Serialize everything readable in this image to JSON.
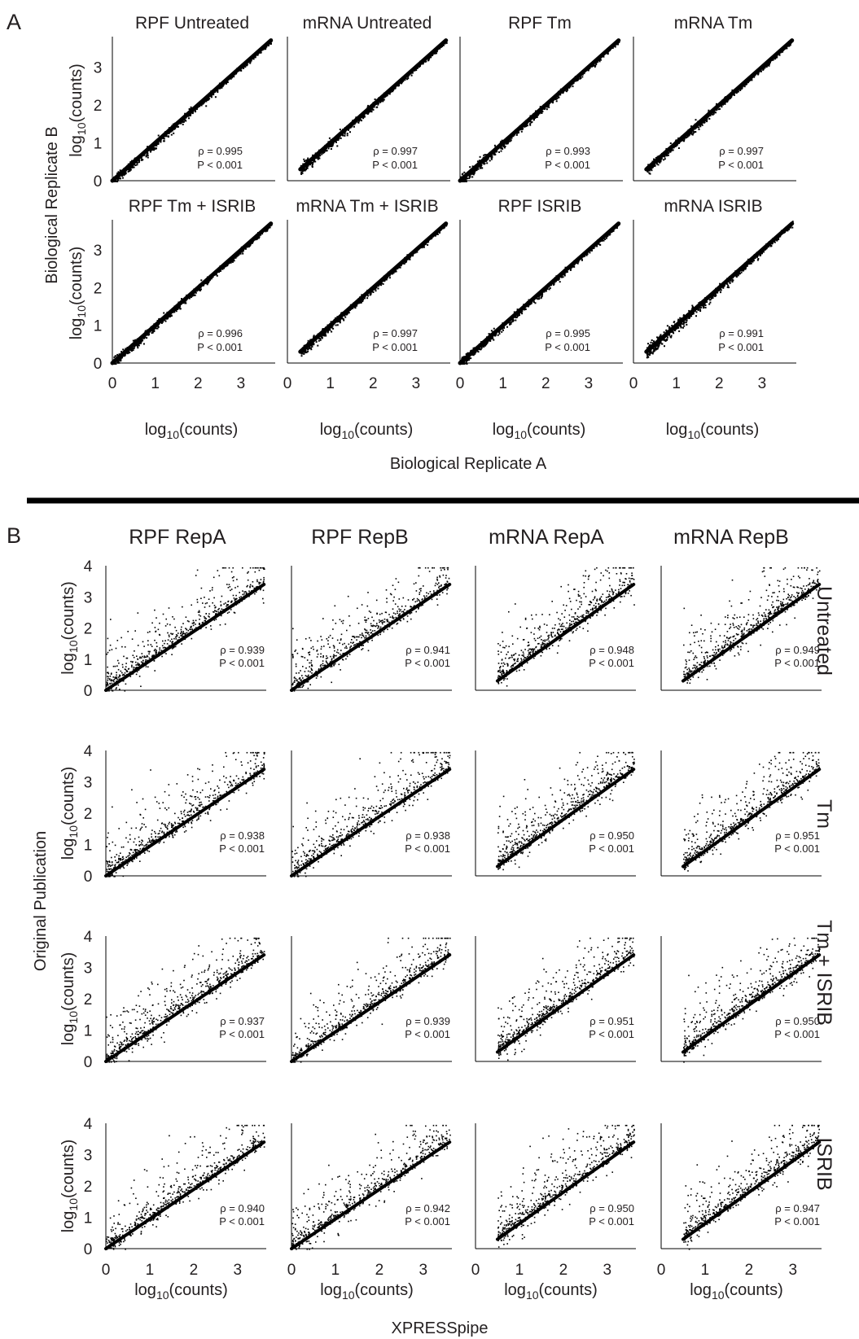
{
  "panel_labels": {
    "a": "A",
    "b": "B"
  },
  "panel_a": {
    "x_title": "Biological Replicate A",
    "y_title": "Biological Replicate B",
    "axis_label": "log10(counts)",
    "x_ticks": [
      "0",
      "1",
      "2",
      "3"
    ],
    "y_ticks": [
      "0",
      "1",
      "2",
      "3"
    ]
  },
  "panel_b": {
    "x_title": "XPRESSpipe",
    "y_title": "Original Publication",
    "axis_label": "log10(counts)",
    "x_ticks": [
      "0",
      "1",
      "2",
      "3"
    ],
    "y_ticks": [
      "0",
      "1",
      "2",
      "3",
      "4"
    ],
    "columns": [
      "RPF RepA",
      "RPF RepB",
      "mRNA RepA",
      "mRNA RepB"
    ],
    "rows": [
      "Untreated",
      "Tm",
      "Tm + ISRIB",
      "ISRIB"
    ]
  },
  "chart_data": [
    {
      "type": "scatter",
      "title": "RPF Untreated",
      "xlabel": "log10(counts)",
      "ylabel": "log10(counts)",
      "xlim": [
        0,
        3.8
      ],
      "ylim": [
        0,
        3.8
      ],
      "rho": "ρ = 0.995",
      "p": "P < 0.001",
      "trend": {
        "x": [
          0,
          3.7
        ],
        "y": [
          0,
          3.7
        ]
      }
    },
    {
      "type": "scatter",
      "title": "mRNA Untreated",
      "xlabel": "log10(counts)",
      "ylabel": "log10(counts)",
      "xlim": [
        0,
        3.8
      ],
      "ylim": [
        0,
        3.8
      ],
      "rho": "ρ = 0.997",
      "p": "P < 0.001",
      "trend": {
        "x": [
          0.3,
          3.7
        ],
        "y": [
          0.3,
          3.7
        ]
      }
    },
    {
      "type": "scatter",
      "title": "RPF Tm",
      "xlabel": "log10(counts)",
      "ylabel": "log10(counts)",
      "xlim": [
        0,
        3.8
      ],
      "ylim": [
        0,
        3.8
      ],
      "rho": "ρ = 0.993",
      "p": "P < 0.001",
      "trend": {
        "x": [
          0,
          3.7
        ],
        "y": [
          0,
          3.7
        ]
      }
    },
    {
      "type": "scatter",
      "title": "mRNA Tm",
      "xlabel": "log10(counts)",
      "ylabel": "log10(counts)",
      "xlim": [
        0,
        3.8
      ],
      "ylim": [
        0,
        3.8
      ],
      "rho": "ρ = 0.997",
      "p": "P < 0.001",
      "trend": {
        "x": [
          0.3,
          3.7
        ],
        "y": [
          0.3,
          3.7
        ]
      }
    },
    {
      "type": "scatter",
      "title": "RPF Tm + ISRIB",
      "xlabel": "log10(counts)",
      "ylabel": "log10(counts)",
      "xlim": [
        0,
        3.8
      ],
      "ylim": [
        0,
        3.8
      ],
      "rho": "ρ = 0.996",
      "p": "P < 0.001",
      "trend": {
        "x": [
          0,
          3.7
        ],
        "y": [
          0,
          3.7
        ]
      }
    },
    {
      "type": "scatter",
      "title": "mRNA Tm + ISRIB",
      "xlabel": "log10(counts)",
      "ylabel": "log10(counts)",
      "xlim": [
        0,
        3.8
      ],
      "ylim": [
        0,
        3.8
      ],
      "rho": "ρ = 0.997",
      "p": "P < 0.001",
      "trend": {
        "x": [
          0.3,
          3.7
        ],
        "y": [
          0.3,
          3.7
        ]
      }
    },
    {
      "type": "scatter",
      "title": "RPF ISRIB",
      "xlabel": "log10(counts)",
      "ylabel": "log10(counts)",
      "xlim": [
        0,
        3.8
      ],
      "ylim": [
        0,
        3.8
      ],
      "rho": "ρ = 0.995",
      "p": "P < 0.001",
      "trend": {
        "x": [
          0,
          3.7
        ],
        "y": [
          0,
          3.7
        ]
      }
    },
    {
      "type": "scatter",
      "title": "mRNA ISRIB",
      "xlabel": "log10(counts)",
      "ylabel": "log10(counts)",
      "xlim": [
        0,
        3.8
      ],
      "ylim": [
        0,
        3.8
      ],
      "rho": "ρ = 0.991",
      "p": "P < 0.001",
      "trend": {
        "x": [
          0.3,
          3.7
        ],
        "y": [
          0.3,
          3.7
        ]
      }
    },
    {
      "type": "scatter",
      "row": "Untreated",
      "column": "RPF RepA",
      "xlim": [
        0,
        3.8
      ],
      "ylim": [
        0,
        4
      ],
      "rho": "ρ = 0.939",
      "p": "P < 0.001",
      "trend": {
        "x": [
          0,
          3.6
        ],
        "y": [
          0,
          3.4
        ]
      }
    },
    {
      "type": "scatter",
      "row": "Untreated",
      "column": "RPF RepB",
      "xlim": [
        0,
        3.8
      ],
      "ylim": [
        0,
        4
      ],
      "rho": "ρ = 0.941",
      "p": "P < 0.001",
      "trend": {
        "x": [
          0,
          3.6
        ],
        "y": [
          0,
          3.4
        ]
      }
    },
    {
      "type": "scatter",
      "row": "Untreated",
      "column": "mRNA RepA",
      "xlim": [
        0,
        3.8
      ],
      "ylim": [
        0,
        4
      ],
      "rho": "ρ = 0.948",
      "p": "P < 0.001",
      "trend": {
        "x": [
          0.5,
          3.6
        ],
        "y": [
          0.3,
          3.4
        ]
      }
    },
    {
      "type": "scatter",
      "row": "Untreated",
      "column": "mRNA RepB",
      "xlim": [
        0,
        3.8
      ],
      "ylim": [
        0,
        4
      ],
      "rho": "ρ = 0.949",
      "p": "P < 0.001",
      "trend": {
        "x": [
          0.5,
          3.6
        ],
        "y": [
          0.3,
          3.4
        ]
      }
    },
    {
      "type": "scatter",
      "row": "Tm",
      "column": "RPF RepA",
      "xlim": [
        0,
        3.8
      ],
      "ylim": [
        0,
        4
      ],
      "rho": "ρ = 0.938",
      "p": "P < 0.001",
      "trend": {
        "x": [
          0,
          3.6
        ],
        "y": [
          0,
          3.4
        ]
      }
    },
    {
      "type": "scatter",
      "row": "Tm",
      "column": "RPF RepB",
      "xlim": [
        0,
        3.8
      ],
      "ylim": [
        0,
        4
      ],
      "rho": "ρ = 0.938",
      "p": "P < 0.001",
      "trend": {
        "x": [
          0,
          3.6
        ],
        "y": [
          0,
          3.4
        ]
      }
    },
    {
      "type": "scatter",
      "row": "Tm",
      "column": "mRNA RepA",
      "xlim": [
        0,
        3.8
      ],
      "ylim": [
        0,
        4
      ],
      "rho": "ρ = 0.950",
      "p": "P < 0.001",
      "trend": {
        "x": [
          0.5,
          3.6
        ],
        "y": [
          0.3,
          3.4
        ]
      }
    },
    {
      "type": "scatter",
      "row": "Tm",
      "column": "mRNA RepB",
      "xlim": [
        0,
        3.8
      ],
      "ylim": [
        0,
        4
      ],
      "rho": "ρ = 0.951",
      "p": "P < 0.001",
      "trend": {
        "x": [
          0.5,
          3.6
        ],
        "y": [
          0.3,
          3.4
        ]
      }
    },
    {
      "type": "scatter",
      "row": "Tm + ISRIB",
      "column": "RPF RepA",
      "xlim": [
        0,
        3.8
      ],
      "ylim": [
        0,
        4
      ],
      "rho": "ρ = 0.937",
      "p": "P < 0.001",
      "trend": {
        "x": [
          0,
          3.6
        ],
        "y": [
          0,
          3.4
        ]
      }
    },
    {
      "type": "scatter",
      "row": "Tm + ISRIB",
      "column": "RPF RepB",
      "xlim": [
        0,
        3.8
      ],
      "ylim": [
        0,
        4
      ],
      "rho": "ρ = 0.939",
      "p": "P < 0.001",
      "trend": {
        "x": [
          0,
          3.6
        ],
        "y": [
          0,
          3.4
        ]
      }
    },
    {
      "type": "scatter",
      "row": "Tm + ISRIB",
      "column": "mRNA RepA",
      "xlim": [
        0,
        3.8
      ],
      "ylim": [
        0,
        4
      ],
      "rho": "ρ = 0.951",
      "p": "P < 0.001",
      "trend": {
        "x": [
          0.5,
          3.6
        ],
        "y": [
          0.3,
          3.4
        ]
      }
    },
    {
      "type": "scatter",
      "row": "Tm + ISRIB",
      "column": "mRNA RepB",
      "xlim": [
        0,
        3.8
      ],
      "ylim": [
        0,
        4
      ],
      "rho": "ρ = 0.950",
      "p": "P < 0.001",
      "trend": {
        "x": [
          0.5,
          3.6
        ],
        "y": [
          0.3,
          3.4
        ]
      }
    },
    {
      "type": "scatter",
      "row": "ISRIB",
      "column": "RPF RepA",
      "xlim": [
        0,
        3.8
      ],
      "ylim": [
        0,
        4
      ],
      "rho": "ρ = 0.940",
      "p": "P < 0.001",
      "trend": {
        "x": [
          0,
          3.6
        ],
        "y": [
          0,
          3.4
        ]
      }
    },
    {
      "type": "scatter",
      "row": "ISRIB",
      "column": "RPF RepB",
      "xlim": [
        0,
        3.8
      ],
      "ylim": [
        0,
        4
      ],
      "rho": "ρ = 0.942",
      "p": "P < 0.001",
      "trend": {
        "x": [
          0,
          3.6
        ],
        "y": [
          0,
          3.4
        ]
      }
    },
    {
      "type": "scatter",
      "row": "ISRIB",
      "column": "mRNA RepA",
      "xlim": [
        0,
        3.8
      ],
      "ylim": [
        0,
        4
      ],
      "rho": "ρ = 0.950",
      "p": "P < 0.001",
      "trend": {
        "x": [
          0.5,
          3.6
        ],
        "y": [
          0.3,
          3.4
        ]
      }
    },
    {
      "type": "scatter",
      "row": "ISRIB",
      "column": "mRNA RepB",
      "xlim": [
        0,
        3.8
      ],
      "ylim": [
        0,
        4
      ],
      "rho": "ρ = 0.947",
      "p": "P < 0.001",
      "trend": {
        "x": [
          0.5,
          3.6
        ],
        "y": [
          0.3,
          3.4
        ]
      }
    }
  ]
}
